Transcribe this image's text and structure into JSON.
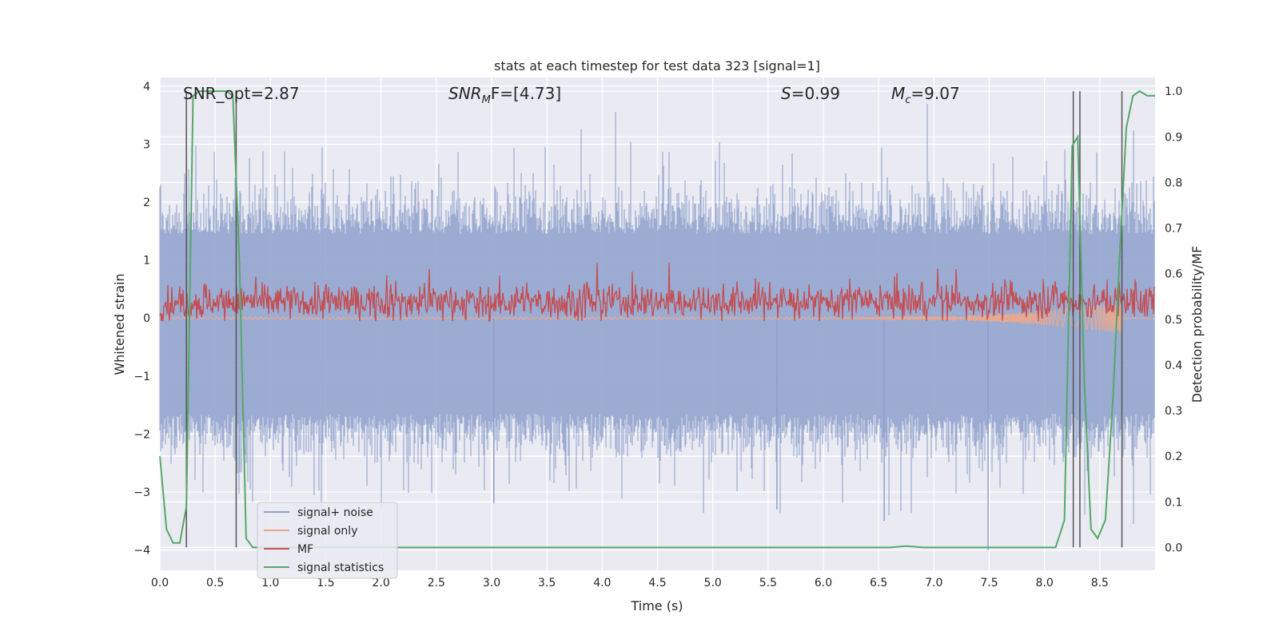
{
  "chart_data": {
    "type": "line",
    "title": "stats at each timestep for test data 323 [signal=1]",
    "xlabel": "Time (s)",
    "ylabel_left": "Whitened strain",
    "ylabel_right": "Detection probability/MF",
    "xlim": [
      0.0,
      9.0
    ],
    "ylim_left": [
      -4.35,
      4.15
    ],
    "ylim_right": [
      -0.05,
      1.03
    ],
    "x_ticks": [
      "0.0",
      "0.5",
      "1.0",
      "1.5",
      "2.0",
      "2.5",
      "3.0",
      "3.5",
      "4.0",
      "4.5",
      "5.0",
      "5.5",
      "6.0",
      "6.5",
      "7.0",
      "7.5",
      "8.0",
      "8.5"
    ],
    "y_ticks_left": [
      "4",
      "3",
      "2",
      "1",
      "0",
      "−1",
      "−2",
      "−3",
      "−4"
    ],
    "y_ticks_right": [
      "1.0",
      "0.9",
      "0.8",
      "0.7",
      "0.6",
      "0.5",
      "0.4",
      "0.3",
      "0.2",
      "0.1",
      "0.0"
    ],
    "grid": true,
    "legend_position": "lower-left",
    "annotations": {
      "snr_opt": "SNR_opt=2.87",
      "snr_mf_base": "SNR",
      "snr_mf_sub": "M",
      "snr_mf_rest": "F=[4.73]",
      "s_sym": "S",
      "s_rest": "=0.99",
      "mc_sym": "M",
      "mc_sub": "c",
      "mc_rest": "=9.07"
    },
    "series": [
      {
        "name": "signal+ noise",
        "color": "#8da0cb",
        "axis": "left",
        "description": "noisy whitened strain, approx ±1.5 with spikes to ±3.7"
      },
      {
        "name": "signal only",
        "color": "#e9a98f",
        "axis": "left",
        "description": "chirp growing near 8.0–8.7 s"
      },
      {
        "name": "MF",
        "color": "#c44e52",
        "axis": "left",
        "description": "matched filter, approx 0.3 ± 0.25"
      },
      {
        "name": "signal statistics",
        "color": "#55a868",
        "axis": "right",
        "x": [
          0.0,
          0.06,
          0.12,
          0.18,
          0.24,
          0.3,
          0.36,
          0.42,
          0.48,
          0.54,
          0.6,
          0.66,
          0.72,
          0.78,
          0.84,
          0.9,
          1.0,
          2.0,
          3.0,
          4.0,
          5.0,
          6.0,
          6.6,
          6.75,
          6.9,
          7.0,
          7.5,
          8.0,
          8.1,
          8.18,
          8.25,
          8.3,
          8.36,
          8.42,
          8.48,
          8.55,
          8.62,
          8.68,
          8.74,
          8.8,
          8.86,
          8.93,
          9.0
        ],
        "y": [
          0.2,
          0.04,
          0.01,
          0.01,
          0.09,
          0.99,
          1.0,
          1.0,
          1.0,
          1.0,
          1.0,
          0.99,
          0.62,
          0.02,
          0.0,
          0.0,
          0.0,
          0.0,
          0.0,
          0.0,
          0.0,
          0.0,
          0.0,
          0.003,
          0.0,
          0.0,
          0.0,
          0.0,
          0.0,
          0.06,
          0.88,
          0.9,
          0.36,
          0.04,
          0.02,
          0.06,
          0.33,
          0.64,
          0.92,
          0.99,
          1.0,
          0.99,
          0.99
        ]
      }
    ],
    "vertical_markers_x": [
      0.24,
      0.69,
      8.26,
      8.32,
      8.7
    ]
  }
}
